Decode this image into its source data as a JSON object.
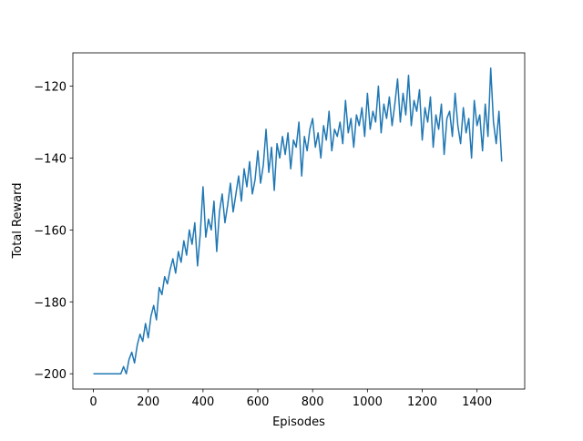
{
  "chart_data": {
    "type": "line",
    "xlabel": "Episodes",
    "ylabel": "Total Reward",
    "x": [
      0,
      10,
      20,
      30,
      40,
      50,
      60,
      70,
      80,
      90,
      100,
      110,
      120,
      130,
      140,
      150,
      160,
      170,
      180,
      190,
      200,
      210,
      220,
      230,
      240,
      250,
      260,
      270,
      280,
      290,
      300,
      310,
      320,
      330,
      340,
      350,
      360,
      370,
      380,
      390,
      400,
      410,
      420,
      430,
      440,
      450,
      460,
      470,
      480,
      490,
      500,
      510,
      520,
      530,
      540,
      550,
      560,
      570,
      580,
      590,
      600,
      610,
      620,
      630,
      640,
      650,
      660,
      670,
      680,
      690,
      700,
      710,
      720,
      730,
      740,
      750,
      760,
      770,
      780,
      790,
      800,
      810,
      820,
      830,
      840,
      850,
      860,
      870,
      880,
      890,
      900,
      910,
      920,
      930,
      940,
      950,
      960,
      970,
      980,
      990,
      1000,
      1010,
      1020,
      1030,
      1040,
      1050,
      1060,
      1070,
      1080,
      1090,
      1100,
      1110,
      1120,
      1130,
      1140,
      1150,
      1160,
      1170,
      1180,
      1190,
      1200,
      1210,
      1220,
      1230,
      1240,
      1250,
      1260,
      1270,
      1280,
      1290,
      1300,
      1310,
      1320,
      1330,
      1340,
      1350,
      1360,
      1370,
      1380,
      1390,
      1400,
      1410,
      1420,
      1430,
      1440,
      1450,
      1460,
      1470,
      1480,
      1490
    ],
    "series": [
      {
        "color": "#1f77b4",
        "values": [
          -200,
          -200,
          -200,
          -200,
          -200,
          -200,
          -200,
          -200,
          -200,
          -200,
          -200,
          -198,
          -200,
          -196,
          -194,
          -197,
          -192,
          -189,
          -191,
          -186,
          -190,
          -184,
          -181,
          -185,
          -176,
          -178,
          -173,
          -175,
          -171,
          -168,
          -172,
          -166,
          -169,
          -163,
          -167,
          -160,
          -164,
          -158,
          -170,
          -161,
          -148,
          -162,
          -157,
          -160,
          -152,
          -166,
          -155,
          -150,
          -158,
          -153,
          -147,
          -155,
          -150,
          -145,
          -152,
          -143,
          -148,
          -141,
          -150,
          -146,
          -138,
          -147,
          -142,
          -132,
          -144,
          -137,
          -149,
          -136,
          -140,
          -134,
          -139,
          -133,
          -143,
          -135,
          -137,
          -130,
          -145,
          -134,
          -138,
          -132,
          -129,
          -137,
          -133,
          -140,
          -131,
          -135,
          -127,
          -138,
          -132,
          -134,
          -130,
          -136,
          -124,
          -133,
          -129,
          -137,
          -128,
          -131,
          -126,
          -134,
          -122,
          -132,
          -127,
          -130,
          -120,
          -133,
          -125,
          -129,
          -123,
          -131,
          -125,
          -118,
          -130,
          -122,
          -128,
          -117,
          -131,
          -124,
          -127,
          -121,
          -135,
          -126,
          -130,
          -123,
          -137,
          -128,
          -132,
          -125,
          -139,
          -129,
          -127,
          -134,
          -122,
          -131,
          -136,
          -126,
          -133,
          -129,
          -140,
          -124,
          -131,
          -128,
          -138,
          -125,
          -134,
          -115,
          -130,
          -136,
          -127,
          -141
        ]
      }
    ],
    "xlim": [
      -75,
      1574
    ],
    "ylim": [
      -204.25,
      -110.75
    ],
    "xticks": [
      0,
      200,
      400,
      600,
      800,
      1000,
      1200,
      1400
    ],
    "yticks": [
      {
        "value": -200,
        "label": "−200"
      },
      {
        "value": -180,
        "label": "−180"
      },
      {
        "value": -160,
        "label": "−160"
      },
      {
        "value": -140,
        "label": "−140"
      },
      {
        "value": -120,
        "label": "−120"
      }
    ]
  }
}
